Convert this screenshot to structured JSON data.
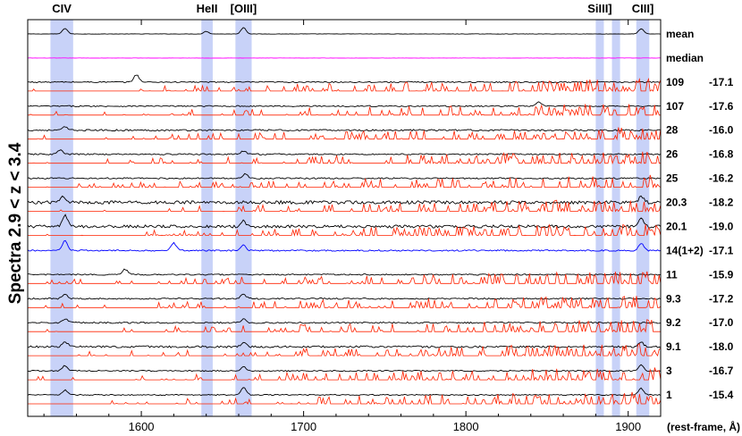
{
  "chart_data": {
    "type": "line",
    "ylabel": "Spectra  2.9 < z < 3.4",
    "xlabel": "(rest-frame, Å)",
    "xlim": [
      1530,
      1920
    ],
    "x_ticks": [
      {
        "value": 1600,
        "label": "1600"
      },
      {
        "value": 1700,
        "label": "1700"
      },
      {
        "value": 1800,
        "label": "1800"
      },
      {
        "value": 1900,
        "label": "1900"
      }
    ],
    "emission_lines": [
      {
        "name": "CIV",
        "range": [
          1544,
          1558
        ]
      },
      {
        "name": "HeII",
        "range": [
          1637,
          1644
        ]
      },
      {
        "name": "[OIII]",
        "range": [
          1658,
          1668
        ]
      },
      {
        "name": "SiIII]",
        "range": [
          1880,
          1885
        ]
      },
      {
        "name": "",
        "range": [
          1890,
          1895
        ]
      },
      {
        "name": "CIII]",
        "range": [
          1905,
          1913
        ]
      }
    ],
    "colors": {
      "object": "#000000",
      "sky": "#ff2200",
      "median": "#ff00ff",
      "stack": "#0000ff",
      "band": "#c8d2f8"
    },
    "spectra": [
      {
        "id": "mean",
        "value": "",
        "color": "#000000",
        "sky": false,
        "noise": 0.25,
        "peaks": [
          [
            1553,
            2.6
          ],
          [
            1663,
            3.0
          ],
          [
            1908,
            2.4
          ],
          [
            1640,
            1.2
          ]
        ]
      },
      {
        "id": "median",
        "value": "",
        "color": "#ff00ff",
        "sky": false,
        "noise": 0.15,
        "peaks": []
      },
      {
        "id": "109",
        "value": "-17.1",
        "color": "#000000",
        "sky": true,
        "noise": 0.7,
        "peaks": [
          [
            1597,
            3.5
          ]
        ]
      },
      {
        "id": "107",
        "value": "-17.6",
        "color": "#000000",
        "sky": true,
        "noise": 0.7,
        "peaks": [
          [
            1845,
            2.0
          ]
        ]
      },
      {
        "id": "28",
        "value": "-16.0",
        "color": "#000000",
        "sky": true,
        "noise": 0.9,
        "peaks": [
          [
            1553,
            1.5
          ]
        ]
      },
      {
        "id": "26",
        "value": "-16.8",
        "color": "#000000",
        "sky": true,
        "noise": 0.8,
        "peaks": [
          [
            1550,
            2.0
          ],
          [
            1663,
            1.5
          ]
        ]
      },
      {
        "id": "25",
        "value": "-16.2",
        "color": "#000000",
        "sky": true,
        "noise": 0.8,
        "peaks": [
          [
            1664,
            2.2
          ]
        ]
      },
      {
        "id": "20.3",
        "value": "-18.2",
        "color": "#000000",
        "sky": true,
        "noise": 1.8,
        "peaks": [
          [
            1552,
            3.0
          ],
          [
            1908,
            2.5
          ]
        ]
      },
      {
        "id": "20.1",
        "value": "-19.0",
        "color": "#000000",
        "sky": true,
        "noise": 1.6,
        "peaks": [
          [
            1553,
            5.0
          ],
          [
            1908,
            4.0
          ],
          [
            1663,
            2.5
          ]
        ]
      },
      {
        "id": "14(1+2)",
        "value": "-17.1",
        "color": "#0000ff",
        "sky": false,
        "noise": 0.8,
        "peaks": [
          [
            1553,
            4.5
          ],
          [
            1620,
            3.5
          ],
          [
            1663,
            2.5
          ],
          [
            1908,
            3.5
          ]
        ]
      },
      {
        "id": "11",
        "value": "-15.9",
        "color": "#000000",
        "sky": true,
        "noise": 0.7,
        "peaks": [
          [
            1590,
            2.5
          ]
        ]
      },
      {
        "id": "9.3",
        "value": "-17.2",
        "color": "#000000",
        "sky": true,
        "noise": 0.8,
        "peaks": [
          [
            1553,
            2.0
          ],
          [
            1663,
            2.0
          ]
        ]
      },
      {
        "id": "9.2",
        "value": "-17.0",
        "color": "#000000",
        "sky": true,
        "noise": 0.8,
        "peaks": [
          [
            1553,
            1.8
          ],
          [
            1663,
            1.8
          ]
        ]
      },
      {
        "id": "9.1",
        "value": "-18.0",
        "color": "#000000",
        "sky": true,
        "noise": 1.1,
        "peaks": [
          [
            1553,
            2.5
          ],
          [
            1663,
            2.0
          ],
          [
            1908,
            2.0
          ]
        ]
      },
      {
        "id": "3",
        "value": "-16.7",
        "color": "#000000",
        "sky": true,
        "noise": 0.7,
        "peaks": [
          [
            1553,
            2.5
          ],
          [
            1663,
            2.0
          ],
          [
            1908,
            3.0
          ]
        ]
      },
      {
        "id": "1",
        "value": "-15.4",
        "color": "#000000",
        "sky": true,
        "noise": 0.6,
        "peaks": [
          [
            1553,
            2.2
          ],
          [
            1663,
            3.5
          ],
          [
            1908,
            3.0
          ]
        ]
      }
    ]
  }
}
